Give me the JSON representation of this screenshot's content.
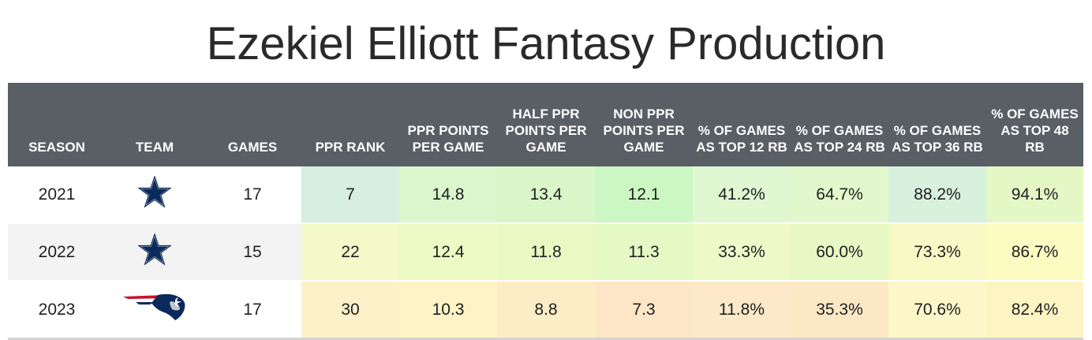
{
  "title": "Ezekiel Elliott Fantasy Production",
  "chart_data": {
    "type": "table",
    "title": "Ezekiel Elliott Fantasy Production",
    "columns": [
      "SEASON",
      "TEAM",
      "GAMES",
      "PPR RANK",
      "PPR POINTS PER GAME",
      "HALF PPR POINTS PER GAME",
      "NON PPR POINTS PER GAME",
      "% OF GAMES AS TOP 12 RB",
      "% OF GAMES AS TOP 24 RB",
      "% OF GAMES AS TOP 36 RB",
      "% OF GAMES AS TOP 48 RB"
    ],
    "rows": [
      {
        "season": "2021",
        "team_icon": "cowboys-star-icon",
        "games": "17",
        "cells": [
          "7",
          "14.8",
          "13.4",
          "12.1",
          "41.2%",
          "64.7%",
          "88.2%",
          "94.1%"
        ],
        "colors": [
          "#d6efe0",
          "#daf6cd",
          "#d9f6c9",
          "#cbf8c2",
          "#e0f7d2",
          "#e2f8cc",
          "#d8f1dc",
          "#e4f8c6"
        ]
      },
      {
        "season": "2022",
        "team_icon": "cowboys-star-icon",
        "games": "15",
        "cells": [
          "22",
          "12.4",
          "11.8",
          "11.3",
          "33.3%",
          "60.0%",
          "73.3%",
          "86.7%"
        ],
        "colors": [
          "#f3f9c8",
          "#edfac4",
          "#eaf9c4",
          "#e4f9c4",
          "#eef9c8",
          "#e8f8c4",
          "#f8f9c5",
          "#fbfbc2"
        ]
      },
      {
        "season": "2023",
        "team_icon": "patriots-logo-icon",
        "games": "17",
        "cells": [
          "30",
          "10.3",
          "8.8",
          "7.3",
          "11.8%",
          "35.3%",
          "70.6%",
          "82.4%"
        ],
        "colors": [
          "#fdf1c9",
          "#fdf3c6",
          "#fdedc6",
          "#fde6c6",
          "#fde9c9",
          "#fde8c6",
          "#fcf6c8",
          "#fdf4c4"
        ]
      }
    ]
  }
}
